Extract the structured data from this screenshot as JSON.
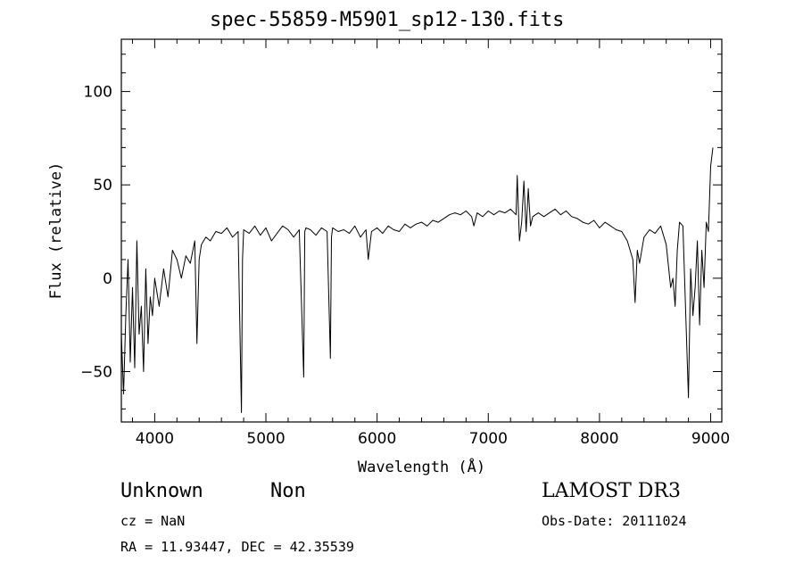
{
  "chart_data": {
    "type": "line",
    "title": "spec-55859-M5901_sp12-130.fits",
    "xlabel": "Wavelength (Å)",
    "ylabel": "Flux (relative)",
    "xlim": [
      3700,
      9100
    ],
    "ylim": [
      -77,
      128
    ],
    "xticks": [
      4000,
      5000,
      6000,
      7000,
      8000,
      9000
    ],
    "yticks": [
      -50,
      0,
      50,
      100
    ],
    "xtick_labels": [
      "4000",
      "5000",
      "6000",
      "7000",
      "8000",
      "9000"
    ],
    "ytick_labels": [
      "−50",
      "0",
      "50",
      "100"
    ],
    "series": [
      {
        "name": "flux",
        "x": [
          3700,
          3720,
          3740,
          3760,
          3780,
          3800,
          3820,
          3840,
          3860,
          3880,
          3900,
          3920,
          3940,
          3960,
          3980,
          4000,
          4040,
          4080,
          4120,
          4160,
          4200,
          4240,
          4280,
          4320,
          4360,
          4380,
          4400,
          4420,
          4460,
          4500,
          4550,
          4600,
          4650,
          4700,
          4750,
          4780,
          4790,
          4800,
          4850,
          4900,
          4950,
          5000,
          5050,
          5100,
          5150,
          5200,
          5250,
          5300,
          5340,
          5350,
          5360,
          5400,
          5450,
          5500,
          5550,
          5580,
          5590,
          5600,
          5650,
          5700,
          5750,
          5800,
          5850,
          5900,
          5920,
          5950,
          6000,
          6050,
          6100,
          6150,
          6200,
          6250,
          6300,
          6350,
          6400,
          6450,
          6500,
          6550,
          6600,
          6650,
          6700,
          6750,
          6800,
          6850,
          6870,
          6900,
          6950,
          7000,
          7050,
          7100,
          7150,
          7200,
          7250,
          7260,
          7280,
          7300,
          7320,
          7340,
          7360,
          7380,
          7400,
          7450,
          7500,
          7550,
          7600,
          7650,
          7700,
          7750,
          7800,
          7850,
          7900,
          7950,
          8000,
          8050,
          8100,
          8150,
          8200,
          8250,
          8300,
          8320,
          8340,
          8360,
          8400,
          8450,
          8500,
          8550,
          8600,
          8640,
          8660,
          8680,
          8700,
          8720,
          8750,
          8800,
          8820,
          8840,
          8860,
          8880,
          8900,
          8920,
          8940,
          8960,
          8980,
          9000,
          9020
        ],
        "y": [
          -30,
          -62,
          -20,
          10,
          -45,
          -5,
          -48,
          20,
          -30,
          -15,
          -50,
          5,
          -35,
          -10,
          -20,
          0,
          -15,
          5,
          -10,
          15,
          10,
          0,
          12,
          8,
          20,
          -35,
          10,
          18,
          22,
          20,
          25,
          24,
          27,
          22,
          25,
          -72,
          10,
          26,
          24,
          28,
          23,
          27,
          20,
          24,
          28,
          26,
          22,
          26,
          -53,
          25,
          27,
          26,
          23,
          27,
          25,
          -43,
          22,
          27,
          25,
          26,
          24,
          28,
          22,
          26,
          10,
          25,
          27,
          24,
          28,
          26,
          25,
          29,
          27,
          29,
          30,
          28,
          31,
          30,
          32,
          34,
          35,
          34,
          36,
          33,
          28,
          35,
          33,
          36,
          34,
          36,
          35,
          37,
          34,
          55,
          20,
          30,
          52,
          25,
          48,
          28,
          33,
          35,
          33,
          35,
          37,
          34,
          36,
          33,
          32,
          30,
          29,
          31,
          27,
          30,
          28,
          26,
          25,
          20,
          10,
          -13,
          15,
          8,
          22,
          26,
          24,
          28,
          18,
          -5,
          0,
          -15,
          15,
          30,
          28,
          -64,
          5,
          -20,
          -5,
          20,
          -25,
          15,
          -5,
          30,
          25,
          60,
          70
        ],
        "color": "#000000"
      }
    ]
  },
  "info": {
    "object_type": "Unknown",
    "subclass": "Non",
    "survey": "LAMOST DR3",
    "cz": "cz = NaN",
    "obs_date": "Obs-Date: 20111024",
    "coords": "RA =  11.93447, DEC =  42.35539"
  }
}
